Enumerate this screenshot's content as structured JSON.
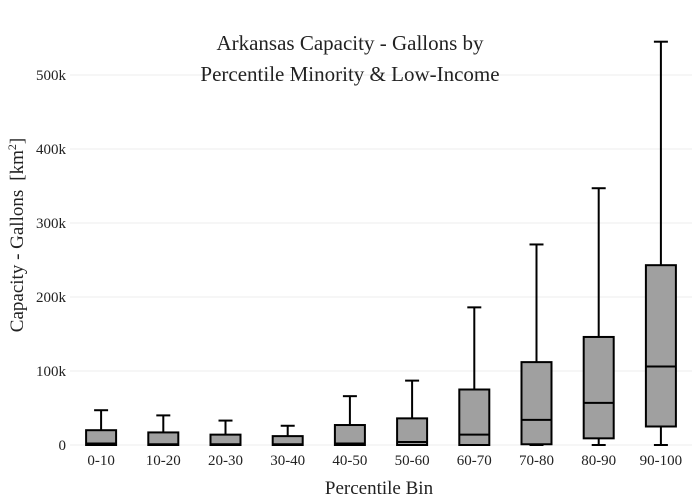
{
  "chart_data": {
    "type": "box",
    "title_line1": "Arkansas Capacity - Gallons by",
    "title_line2": "Percentile Minority & Low-Income",
    "xlabel": "Percentile Bin",
    "ylabel": "Capacity - Gallons",
    "ylabel_unit_prefix": "[km",
    "ylabel_unit_exp": "2",
    "ylabel_unit_suffix": "]",
    "ylim": [
      0,
      560000
    ],
    "yticks": [
      0,
      100000,
      200000,
      300000,
      400000,
      500000
    ],
    "ytick_labels": [
      "0",
      "100k",
      "200k",
      "300k",
      "400k",
      "500k"
    ],
    "grid": true,
    "box_color": "#a0a0a0",
    "categories": [
      "0-10",
      "10-20",
      "20-30",
      "30-40",
      "40-50",
      "50-60",
      "60-70",
      "70-80",
      "80-90",
      "90-100"
    ],
    "boxes": [
      {
        "min": 0,
        "q1": 0,
        "median": 2000,
        "q3": 20000,
        "max": 47000
      },
      {
        "min": 0,
        "q1": 0,
        "median": 1000,
        "q3": 17000,
        "max": 40000
      },
      {
        "min": 0,
        "q1": 0,
        "median": 1000,
        "q3": 14000,
        "max": 33000
      },
      {
        "min": 0,
        "q1": 0,
        "median": 1000,
        "q3": 12000,
        "max": 26000
      },
      {
        "min": 0,
        "q1": 0,
        "median": 2000,
        "q3": 27000,
        "max": 66000
      },
      {
        "min": 0,
        "q1": 0,
        "median": 4000,
        "q3": 36000,
        "max": 87000
      },
      {
        "min": 0,
        "q1": 0,
        "median": 14000,
        "q3": 75000,
        "max": 186000
      },
      {
        "min": 0,
        "q1": 1000,
        "median": 34000,
        "q3": 112000,
        "max": 271000
      },
      {
        "min": 0,
        "q1": 9000,
        "median": 57000,
        "q3": 146000,
        "max": 347000
      },
      {
        "min": 0,
        "q1": 25000,
        "median": 106000,
        "q3": 243000,
        "max": 545000
      }
    ]
  }
}
